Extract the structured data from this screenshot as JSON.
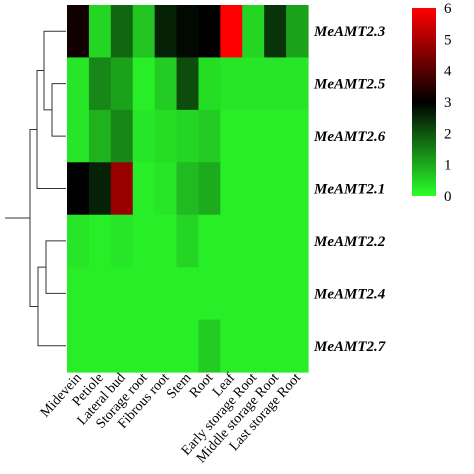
{
  "chart_data": {
    "type": "heatmap",
    "columns": [
      "Midevein",
      "Petiole",
      "Lateral bud",
      "Storage root",
      "Fibrous root",
      "Stem",
      "Root",
      "Leaf",
      "Early storage Root",
      "Middle storage Root",
      "Last storage Root"
    ],
    "rows": [
      "MeAMT2.3",
      "MeAMT2.5",
      "MeAMT2.6",
      "MeAMT2.1",
      "MeAMT2.2",
      "MeAMT2.4",
      "MeAMT2.7"
    ],
    "values": [
      [
        3.2,
        0.5,
        1.8,
        0.7,
        2.6,
        2.9,
        3.0,
        6.0,
        0.5,
        2.4,
        1.1
      ],
      [
        0.3,
        1.4,
        1.1,
        0.2,
        0.6,
        2.1,
        0.4,
        0.3,
        0.3,
        0.3,
        0.3
      ],
      [
        0.3,
        0.9,
        1.4,
        0.3,
        0.4,
        0.5,
        0.6,
        0.2,
        0.2,
        0.2,
        0.2
      ],
      [
        3.0,
        2.6,
        4.8,
        0.2,
        0.3,
        0.8,
        1.0,
        0.2,
        0.2,
        0.2,
        0.2
      ],
      [
        0.3,
        0.2,
        0.3,
        0.2,
        0.2,
        0.5,
        0.2,
        0.2,
        0.2,
        0.2,
        0.2
      ],
      [
        0.2,
        0.2,
        0.2,
        0.2,
        0.2,
        0.2,
        0.2,
        0.2,
        0.2,
        0.2,
        0.2
      ],
      [
        0.2,
        0.2,
        0.2,
        0.2,
        0.2,
        0.2,
        0.6,
        0.2,
        0.2,
        0.2,
        0.2
      ]
    ],
    "colorbar": {
      "range": [
        0,
        6
      ],
      "ticks": [
        "0",
        "1",
        "2",
        "3",
        "4",
        "5",
        "6"
      ],
      "colors": [
        "#2bff2b",
        "#000000",
        "#ff0000"
      ]
    },
    "dendrogram": "rows, left side"
  }
}
